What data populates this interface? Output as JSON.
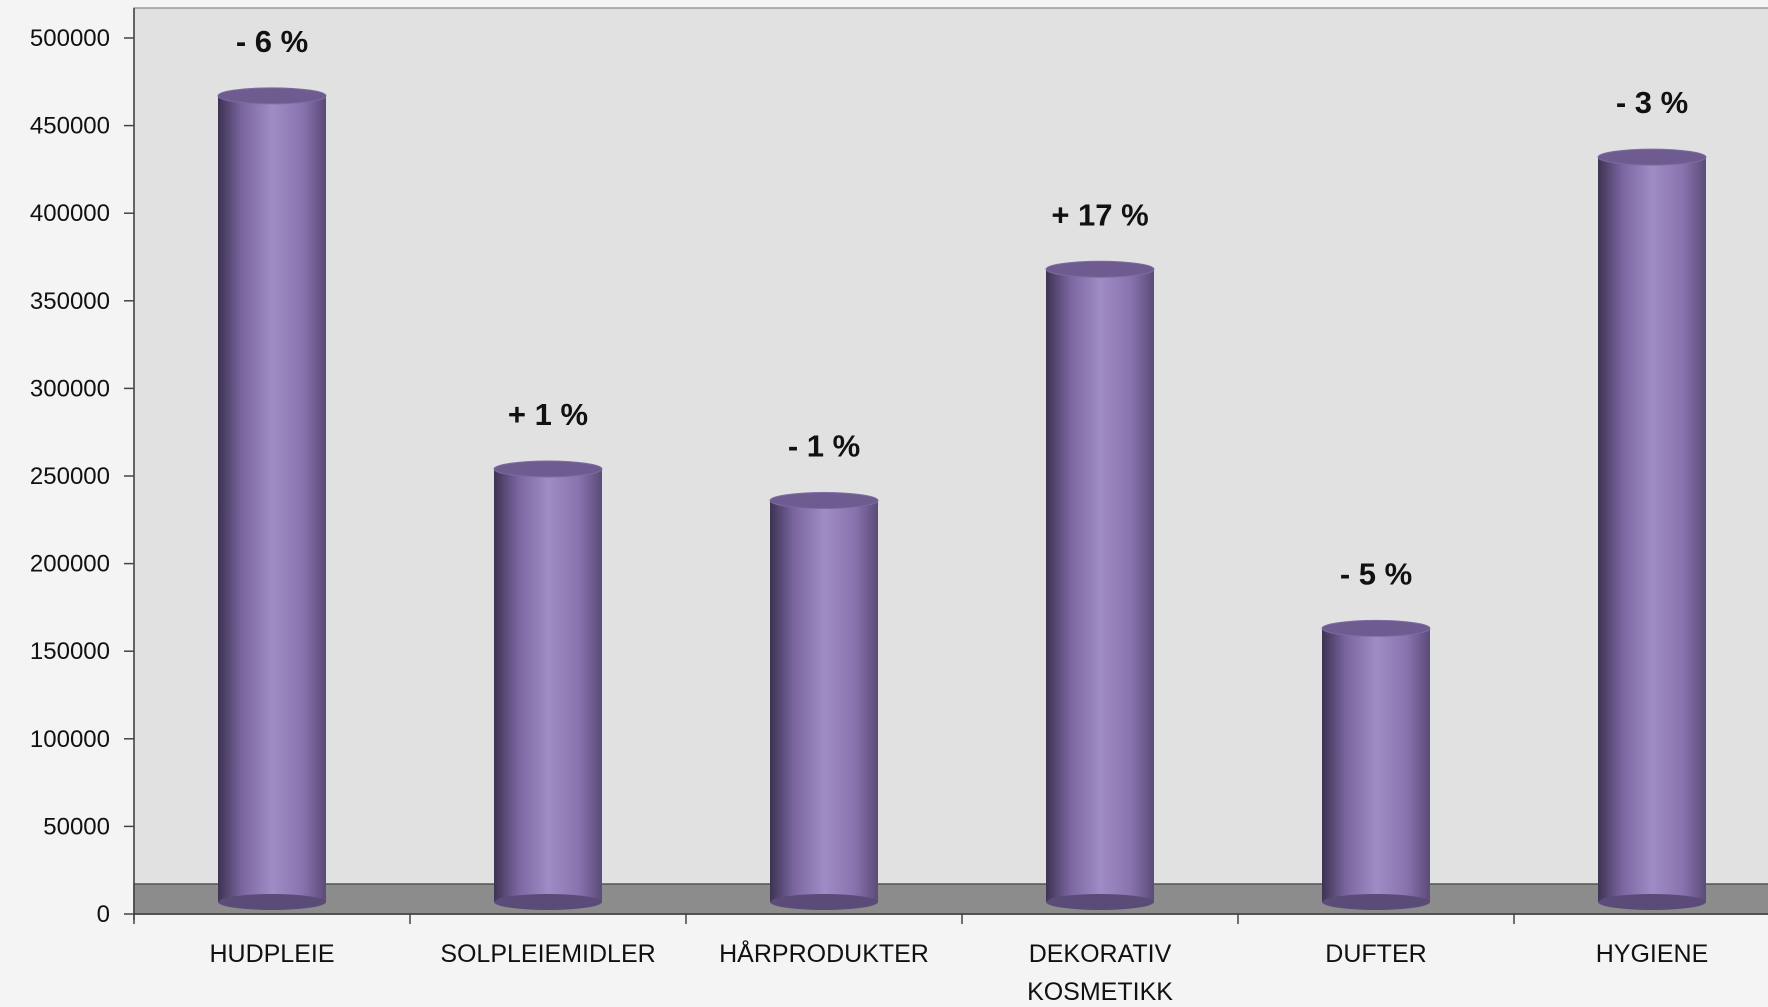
{
  "chart_data": {
    "type": "bar",
    "title": "",
    "xlabel": "",
    "ylabel": "",
    "ylim": [
      0,
      500000
    ],
    "yticks": [
      0,
      50000,
      100000,
      150000,
      200000,
      250000,
      300000,
      350000,
      400000,
      450000,
      500000
    ],
    "categories": [
      [
        "HUDPLEIE"
      ],
      [
        "SOLPLEIEMIDLER"
      ],
      [
        "HÅRPRODUKTER"
      ],
      [
        "DEKORATIV",
        "KOSMETIKK"
      ],
      [
        "DUFTER"
      ],
      [
        "HYGIENE"
      ]
    ],
    "values": [
      467000,
      254000,
      236000,
      368000,
      163000,
      432000
    ],
    "data_labels": [
      "- 6 %",
      "+ 1 %",
      "-  1 %",
      "+ 17  %",
      "- 5 %",
      "- 3 %"
    ],
    "grid": false,
    "legend": "none",
    "colors": {
      "bar_light": "#a08cc4",
      "bar_mid": "#8a74b0",
      "bar_dark": "#3d3352",
      "plot_bg": "#e1e1e1",
      "floor": "#8c8c8c"
    }
  }
}
